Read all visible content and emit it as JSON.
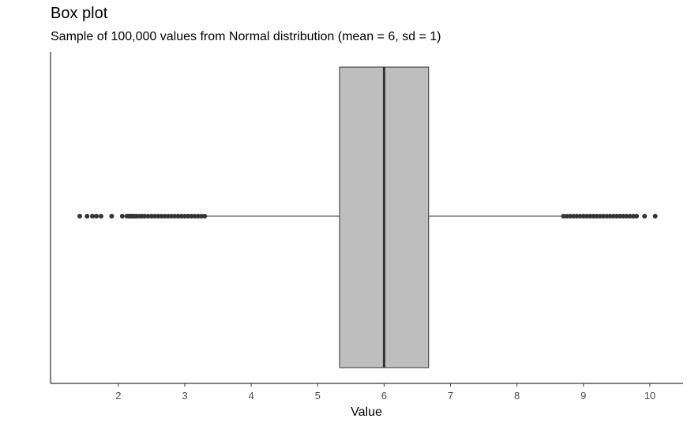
{
  "chart_data": {
    "type": "box",
    "title": "Box plot",
    "subtitle": "Sample of 100,000 values from Normal distribution (mean = 6, sd = 1)",
    "xlabel": "Value",
    "ylabel": "",
    "orientation": "horizontal",
    "xlim": [
      0.98,
      10.5
    ],
    "x_ticks": [
      2,
      3,
      4,
      5,
      6,
      7,
      8,
      9,
      10
    ],
    "grid": false,
    "box": {
      "q1": 5.33,
      "median": 6.0,
      "q3": 6.67,
      "whisker_low": 3.32,
      "whisker_high": 8.68,
      "fill": "#bebebe",
      "outline": "#333333"
    },
    "outliers_low": [
      1.42,
      1.53,
      1.61,
      1.67,
      1.74,
      1.9,
      2.06,
      2.13,
      2.16,
      2.18,
      2.2,
      2.22,
      2.25,
      2.28,
      2.32,
      2.36,
      2.4,
      2.45,
      2.5,
      2.55,
      2.6,
      2.65,
      2.7,
      2.75,
      2.8,
      2.85,
      2.9,
      2.95,
      3.0,
      3.05,
      3.1,
      3.15,
      3.2,
      3.25,
      3.3
    ],
    "outliers_high": [
      8.7,
      8.75,
      8.8,
      8.85,
      8.9,
      8.95,
      9.0,
      9.05,
      9.1,
      9.15,
      9.2,
      9.25,
      9.3,
      9.35,
      9.4,
      9.45,
      9.5,
      9.55,
      9.6,
      9.65,
      9.7,
      9.75,
      9.8,
      9.92,
      10.08
    ],
    "point_color": "#333333"
  }
}
